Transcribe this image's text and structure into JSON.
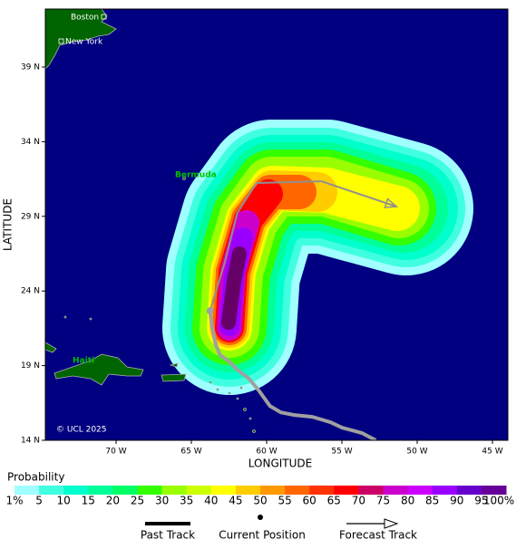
{
  "map": {
    "x_axis": {
      "label": "LONGITUDE",
      "ticks": [
        {
          "value": -70,
          "label": "70 W"
        },
        {
          "value": -65,
          "label": "65 W"
        },
        {
          "value": -60,
          "label": "60 W"
        },
        {
          "value": -55,
          "label": "55 W"
        },
        {
          "value": -50,
          "label": "50 W"
        },
        {
          "value": -45,
          "label": "45 W"
        }
      ]
    },
    "y_axis": {
      "label": "LATITUDE",
      "ticks": [
        {
          "value": 39,
          "label": "39 N"
        },
        {
          "value": 34,
          "label": "34 N"
        },
        {
          "value": 29,
          "label": "29 N"
        },
        {
          "value": 24,
          "label": "24 N"
        },
        {
          "value": 19,
          "label": "19 N"
        },
        {
          "value": 14,
          "label": "14 N"
        }
      ]
    },
    "places": [
      "Boston",
      "New York",
      "Bermuda",
      "Haiti"
    ],
    "credit": "© UCL 2025",
    "past_track": {
      "lon": [
        -52.75,
        -53.65,
        -54.97,
        -55.76,
        -56.96,
        -58.16,
        -59.06,
        -59.78,
        -60.56,
        -61.17,
        -61.95,
        -62.55,
        -63.09,
        -63.39,
        -63.63,
        -63.75
      ],
      "lat": [
        14.0,
        14.48,
        14.84,
        15.21,
        15.57,
        15.69,
        15.87,
        16.3,
        17.39,
        18.12,
        18.73,
        19.33,
        19.7,
        20.43,
        21.64,
        22.67
      ]
    },
    "forecast_track": {
      "lon": [
        -63.75,
        -62.79,
        -61.95,
        -60.68,
        -56.36,
        -51.37
      ],
      "lat": [
        22.67,
        25.89,
        29.23,
        31.23,
        31.35,
        29.65
      ]
    },
    "legend": {
      "title": "Probability",
      "labels": [
        "1%",
        "5",
        "10",
        "15",
        "20",
        "25",
        "30",
        "35",
        "40",
        "45",
        "50",
        "55",
        "60",
        "65",
        "70",
        "75",
        "80",
        "85",
        "90",
        "95",
        "100%"
      ],
      "colors": [
        "#a0ffff",
        "#40ffe0",
        "#00ffcc",
        "#00ff99",
        "#00ff66",
        "#33ff00",
        "#99ff00",
        "#ccff00",
        "#ffff00",
        "#ffcc00",
        "#ff9900",
        "#ff6600",
        "#ff3300",
        "#ff0000",
        "#cc0066",
        "#cc00cc",
        "#cc00ff",
        "#9900ff",
        "#6600cc",
        "#660099"
      ],
      "keys": [
        "Past Track",
        "Current Position",
        "Forecast Track"
      ]
    }
  }
}
